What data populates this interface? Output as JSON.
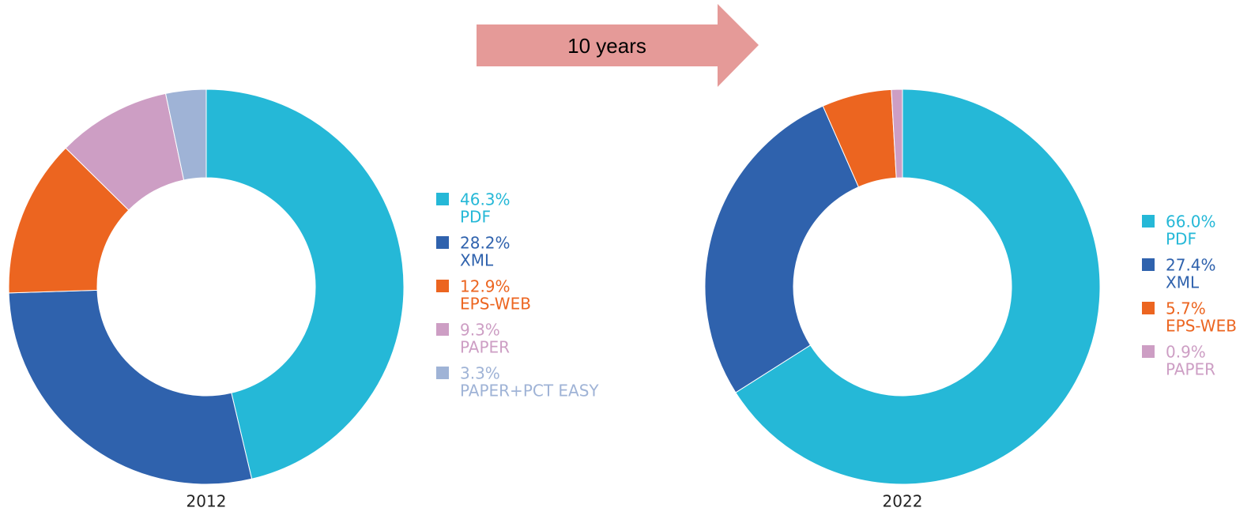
{
  "arrow": {
    "label": "10 years"
  },
  "chart_data": [
    {
      "type": "pie",
      "title": "2012",
      "categories": [
        "PDF",
        "XML",
        "EPS-WEB",
        "PAPER",
        "PAPER+PCT EASY"
      ],
      "values": [
        46.3,
        28.2,
        12.9,
        9.3,
        3.3
      ],
      "value_labels": [
        "46.3%",
        "28.2%",
        "12.9%",
        "9.3%",
        "3.3%"
      ],
      "colors": [
        "#25b8d7",
        "#2f62ad",
        "#ec6520",
        "#cd9ec4",
        "#9fb3d6"
      ]
    },
    {
      "type": "pie",
      "title": "2022",
      "categories": [
        "PDF",
        "XML",
        "EPS-WEB",
        "PAPER"
      ],
      "values": [
        66.0,
        27.4,
        5.7,
        0.9
      ],
      "value_labels": [
        "66.0%",
        "27.4%",
        "5.7%",
        "0.9%"
      ],
      "colors": [
        "#25b8d7",
        "#2f62ad",
        "#ec6520",
        "#cd9ec4"
      ]
    }
  ]
}
